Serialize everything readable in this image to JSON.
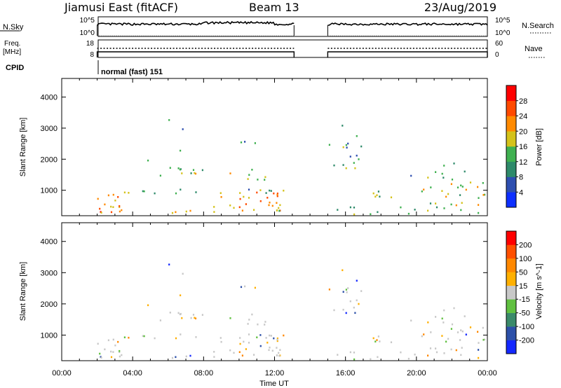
{
  "header": {
    "station": "Jiamusi East (fitACF)",
    "beam": "Beam 13",
    "date": "23/Aug/2019"
  },
  "strip": {
    "nsky_label": "N.Sky",
    "nsky_ticks": [
      "10^5",
      "10^0"
    ],
    "nsearch_label": "N.Search",
    "nsearch_ticks": [
      "10^5",
      "10^0"
    ],
    "freq_label_1": "Freq.",
    "freq_label_2": "[MHz]",
    "freq_ticks": [
      "18",
      "8"
    ],
    "nave_label": "Nave",
    "nave_ticks": [
      "60",
      "0"
    ],
    "cpid_label": "CPID",
    "cpid_text": "normal (fast) 151",
    "data_segments_hours": [
      [
        2.0,
        13.1
      ],
      [
        15.0,
        24.0
      ]
    ]
  },
  "chart_data": [
    {
      "type": "heatmap",
      "name": "power",
      "ylabel": "Slant Range [km]",
      "xlabel": "",
      "x_ticks": [
        "00:00",
        "04:00",
        "08:00",
        "12:00",
        "16:00",
        "20:00",
        "00:00"
      ],
      "x_range_hours": [
        0,
        24
      ],
      "y_ticks": [
        1000,
        2000,
        3000,
        4000
      ],
      "y_range_km": [
        180,
        4600
      ],
      "colorbar": {
        "label": "Power [dB]",
        "ticks": [
          "4",
          "8",
          "12",
          "16",
          "20",
          "24",
          "28"
        ],
        "range": [
          0,
          30
        ],
        "colors": [
          "#0d2fff",
          "#2e4fb0",
          "#2e8a6a",
          "#3fb050",
          "#d4c21a",
          "#ff8a00",
          "#ff4a00",
          "#ff0000"
        ]
      }
    },
    {
      "type": "heatmap",
      "name": "velocity",
      "ylabel": "Slant Range [km]",
      "xlabel": "Time UT",
      "x_ticks": [
        "00:00",
        "04:00",
        "08:00",
        "12:00",
        "16:00",
        "20:00",
        "00:00"
      ],
      "x_range_hours": [
        0,
        24
      ],
      "y_ticks": [
        1000,
        2000,
        3000,
        4000
      ],
      "y_range_km": [
        180,
        4600
      ],
      "colorbar": {
        "label": "Velocity [m s^-1]",
        "ticks": [
          "200",
          "100",
          "50",
          "15",
          "-15",
          "-50",
          "-100",
          "-200"
        ],
        "colors": [
          "#1428ff",
          "#2c50a8",
          "#3a8a6a",
          "#60c040",
          "#c8c8c8",
          "#ffb000",
          "#ff8800",
          "#ff5000",
          "#ff0000"
        ]
      }
    }
  ]
}
